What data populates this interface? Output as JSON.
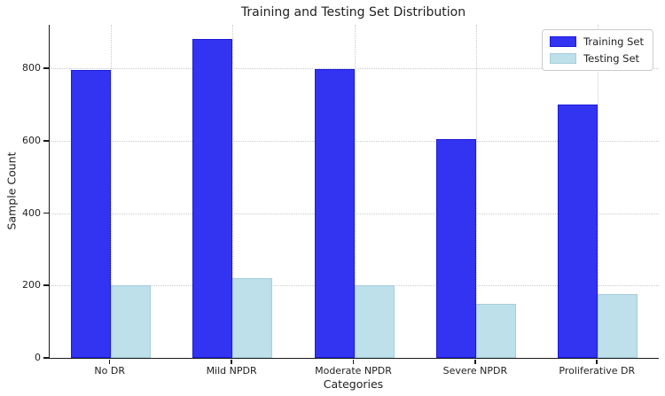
{
  "chart_data": {
    "type": "bar",
    "title": "Training and Testing Set Distribution",
    "xlabel": "Categories",
    "ylabel": "Sample Count",
    "categories": [
      "No DR",
      "Mild NPDR",
      "Moderate NPDR",
      "Severe NPDR",
      "Proliferative DR"
    ],
    "series": [
      {
        "name": "Training Set",
        "fill": "#3333f2",
        "edge": "#1b1bd8",
        "values": [
          795,
          880,
          797,
          605,
          700
        ]
      },
      {
        "name": "Testing Set",
        "fill": "#bde0eb",
        "edge": "#a6cdda",
        "values": [
          200,
          220,
          200,
          150,
          175
        ]
      }
    ],
    "yticks": [
      0,
      200,
      400,
      600,
      800
    ],
    "ylim": [
      0,
      920
    ],
    "grid": {
      "show": true,
      "style": "dotted",
      "color": "#c9c9c9",
      "axes": "both"
    },
    "legend": {
      "position": "upper-right"
    }
  }
}
